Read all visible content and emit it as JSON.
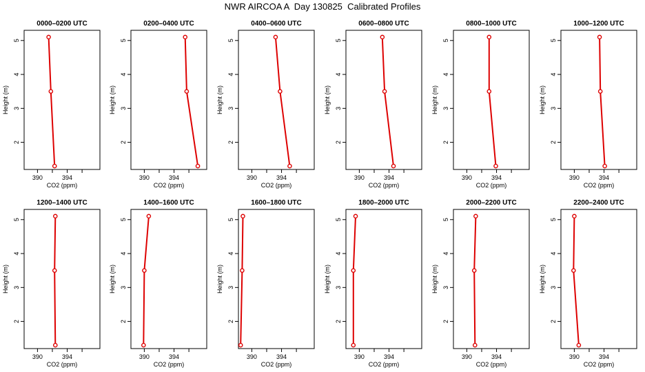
{
  "page_title": "NWR AIRCOA A  Day 130825  Calibrated Profiles",
  "chart_data": [
    {
      "type": "line",
      "title": "0000–0200 UTC",
      "xlabel": "CO2 (ppm)",
      "ylabel": "Height (m)",
      "x": [
        391.5,
        391.8,
        392.3
      ],
      "y": [
        5.1,
        3.5,
        1.3
      ],
      "xlim": [
        388.2,
        398.4
      ],
      "ylim": [
        1.2,
        5.3
      ],
      "xticks": [
        390,
        394
      ],
      "yticks": [
        2,
        3,
        4,
        5
      ]
    },
    {
      "type": "line",
      "title": "0200–0400 UTC",
      "xlabel": "CO2 (ppm)",
      "ylabel": "Height (m)",
      "x": [
        395.5,
        395.7,
        397.2
      ],
      "y": [
        5.1,
        3.5,
        1.3
      ],
      "xlim": [
        388.2,
        398.4
      ],
      "ylim": [
        1.2,
        5.3
      ],
      "xticks": [
        390,
        394
      ],
      "yticks": [
        2,
        3,
        4,
        5
      ]
    },
    {
      "type": "line",
      "title": "0400–0600 UTC",
      "xlabel": "CO2 (ppm)",
      "ylabel": "Height (m)",
      "x": [
        393.2,
        393.8,
        395.1
      ],
      "y": [
        5.1,
        3.5,
        1.3
      ],
      "xlim": [
        388.2,
        398.4
      ],
      "ylim": [
        1.2,
        5.3
      ],
      "xticks": [
        390,
        394
      ],
      "yticks": [
        2,
        3,
        4,
        5
      ]
    },
    {
      "type": "line",
      "title": "0600–0800 UTC",
      "xlabel": "CO2 (ppm)",
      "ylabel": "Height (m)",
      "x": [
        393.1,
        393.4,
        394.6
      ],
      "y": [
        5.1,
        3.5,
        1.3
      ],
      "xlim": [
        388.2,
        398.4
      ],
      "ylim": [
        1.2,
        5.3
      ],
      "xticks": [
        390,
        394
      ],
      "yticks": [
        2,
        3,
        4,
        5
      ]
    },
    {
      "type": "line",
      "title": "0800–1000 UTC",
      "xlabel": "CO2 (ppm)",
      "ylabel": "Height (m)",
      "x": [
        393.0,
        393.0,
        393.9
      ],
      "y": [
        5.1,
        3.5,
        1.3
      ],
      "xlim": [
        388.2,
        398.4
      ],
      "ylim": [
        1.2,
        5.3
      ],
      "xticks": [
        390,
        394
      ],
      "yticks": [
        2,
        3,
        4,
        5
      ]
    },
    {
      "type": "line",
      "title": "1000–1200 UTC",
      "xlabel": "CO2 (ppm)",
      "ylabel": "Height (m)",
      "x": [
        393.4,
        393.5,
        394.1
      ],
      "y": [
        5.1,
        3.5,
        1.3
      ],
      "xlim": [
        388.2,
        398.4
      ],
      "ylim": [
        1.2,
        5.3
      ],
      "xticks": [
        390,
        394
      ],
      "yticks": [
        2,
        3,
        4,
        5
      ]
    },
    {
      "type": "line",
      "title": "1200–1400 UTC",
      "xlabel": "CO2 (ppm)",
      "ylabel": "Height (m)",
      "x": [
        392.4,
        392.3,
        392.4
      ],
      "y": [
        5.1,
        3.5,
        1.3
      ],
      "xlim": [
        388.2,
        398.4
      ],
      "ylim": [
        1.2,
        5.3
      ],
      "xticks": [
        390,
        394
      ],
      "yticks": [
        2,
        3,
        4,
        5
      ]
    },
    {
      "type": "line",
      "title": "1400–1600 UTC",
      "xlabel": "CO2 (ppm)",
      "ylabel": "Height (m)",
      "x": [
        390.6,
        390.0,
        389.9
      ],
      "y": [
        5.1,
        3.5,
        1.3
      ],
      "xlim": [
        388.2,
        398.4
      ],
      "ylim": [
        1.2,
        5.3
      ],
      "xticks": [
        390,
        394
      ],
      "yticks": [
        2,
        3,
        4,
        5
      ]
    },
    {
      "type": "line",
      "title": "1600–1800 UTC",
      "xlabel": "CO2 (ppm)",
      "ylabel": "Height (m)",
      "x": [
        388.8,
        388.7,
        388.5
      ],
      "y": [
        5.1,
        3.5,
        1.3
      ],
      "xlim": [
        388.2,
        398.4
      ],
      "ylim": [
        1.2,
        5.3
      ],
      "xticks": [
        390,
        394
      ],
      "yticks": [
        2,
        3,
        4,
        5
      ]
    },
    {
      "type": "line",
      "title": "1800–2000 UTC",
      "xlabel": "CO2 (ppm)",
      "ylabel": "Height (m)",
      "x": [
        389.5,
        389.2,
        389.2
      ],
      "y": [
        5.1,
        3.5,
        1.3
      ],
      "xlim": [
        388.2,
        398.4
      ],
      "ylim": [
        1.2,
        5.3
      ],
      "xticks": [
        390,
        394
      ],
      "yticks": [
        2,
        3,
        4,
        5
      ]
    },
    {
      "type": "line",
      "title": "2000–2200 UTC",
      "xlabel": "CO2 (ppm)",
      "ylabel": "Height (m)",
      "x": [
        391.2,
        391.0,
        391.1
      ],
      "y": [
        5.1,
        3.5,
        1.3
      ],
      "xlim": [
        388.2,
        398.4
      ],
      "ylim": [
        1.2,
        5.3
      ],
      "xticks": [
        390,
        394
      ],
      "yticks": [
        2,
        3,
        4,
        5
      ]
    },
    {
      "type": "line",
      "title": "2200–2400 UTC",
      "xlabel": "CO2 (ppm)",
      "ylabel": "Height (m)",
      "x": [
        390.0,
        389.9,
        390.6
      ],
      "y": [
        5.1,
        3.5,
        1.3
      ],
      "xlim": [
        388.2,
        398.4
      ],
      "ylim": [
        1.2,
        5.3
      ],
      "xticks": [
        390,
        394
      ],
      "yticks": [
        2,
        3,
        4,
        5
      ]
    }
  ],
  "colors": {
    "series_line": "#dd0000",
    "marker": "#dd0000",
    "axis": "#000000"
  },
  "marker": "open-circle"
}
